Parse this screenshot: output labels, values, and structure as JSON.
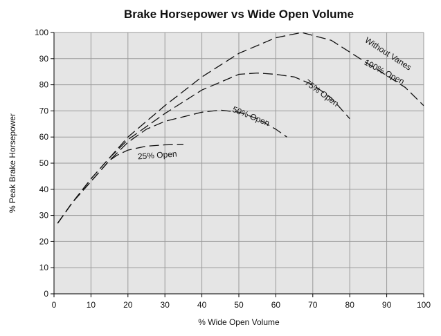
{
  "chart_data": {
    "type": "line",
    "title": "Brake Horsepower vs Wide Open Volume",
    "x_label": "% Wide Open Volume",
    "y_label": "% Peak Brake Horsepower",
    "xlim": [
      0,
      100
    ],
    "xticks": [
      0,
      10,
      20,
      30,
      40,
      50,
      60,
      70,
      80,
      90,
      100
    ],
    "ylim": [
      0,
      100
    ],
    "yticks": [
      0,
      10,
      20,
      30,
      40,
      50,
      60,
      70,
      80,
      90,
      100
    ],
    "grid": true,
    "annotations": [
      "Without Vanes"
    ],
    "series": [
      {
        "name": "100% Open",
        "color": "#111111",
        "x": [
          1,
          5,
          10,
          15,
          20,
          30,
          40,
          50,
          60,
          67,
          75,
          85,
          95,
          100
        ],
        "values": [
          27,
          35,
          44,
          52,
          60,
          72,
          83,
          92,
          98,
          100,
          97,
          88,
          79,
          72
        ]
      },
      {
        "name": "75% Open",
        "color": "#111111",
        "x": [
          1,
          5,
          10,
          15,
          20,
          30,
          40,
          50,
          55,
          60,
          65,
          70,
          75,
          80
        ],
        "values": [
          27,
          35,
          44,
          52,
          59,
          69,
          78,
          84,
          84.5,
          84,
          83,
          80,
          75,
          67
        ]
      },
      {
        "name": "50% Open",
        "color": "#111111",
        "x": [
          1,
          5,
          10,
          15,
          20,
          25,
          30,
          40,
          45,
          50,
          55,
          60,
          63
        ],
        "values": [
          27,
          35,
          43,
          51,
          58,
          63,
          66,
          69.5,
          70.3,
          69.5,
          67,
          63,
          60
        ]
      },
      {
        "name": "25% Open",
        "color": "#111111",
        "x": [
          1,
          5,
          10,
          15,
          17,
          20,
          25,
          30,
          35
        ],
        "values": [
          27,
          35,
          43,
          51,
          53,
          55,
          56.5,
          57,
          57.2
        ]
      }
    ]
  }
}
